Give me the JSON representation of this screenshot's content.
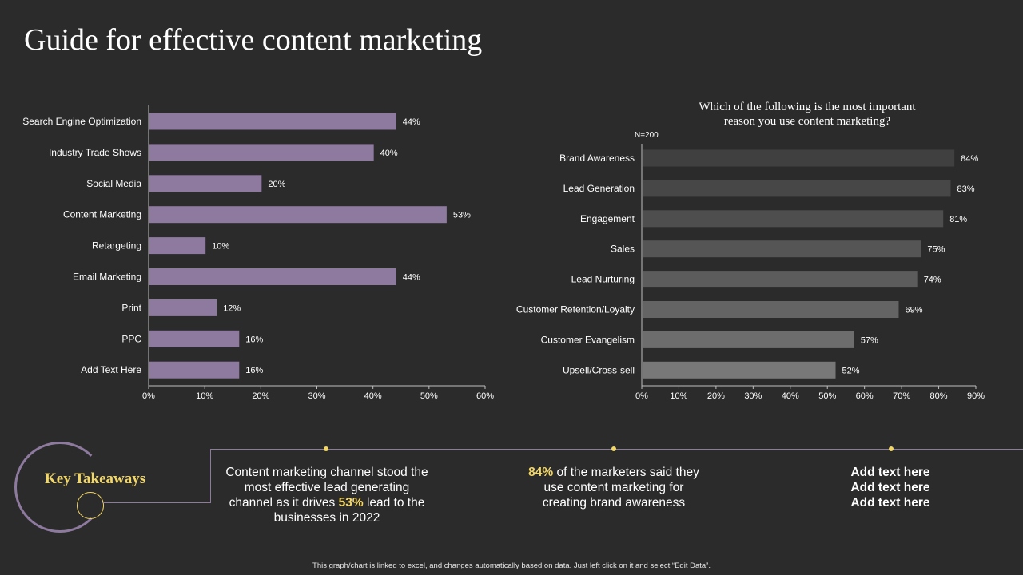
{
  "title": "Guide for effective content marketing",
  "colors": {
    "background": "#2b2b2b",
    "left_bar": "#8e7a9f",
    "right_bars": [
      "#404040",
      "#474747",
      "#4e4e4e",
      "#555555",
      "#5c5c5c",
      "#646464",
      "#6d6d6d",
      "#787878"
    ],
    "accent": "#f2d666",
    "text": "#ffffff"
  },
  "chart_data": [
    {
      "type": "bar",
      "orientation": "horizontal",
      "title": "",
      "categories": [
        "Search Engine Optimization",
        "Industry Trade Shows",
        "Social Media",
        "Content Marketing",
        "Retargeting",
        "Email Marketing",
        "Print",
        "PPC",
        "Add Text Here"
      ],
      "values": [
        44,
        40,
        20,
        53,
        10,
        44,
        12,
        16,
        16
      ],
      "value_labels": [
        "44%",
        "40%",
        "20%",
        "53%",
        "10%",
        "44%",
        "12%",
        "16%",
        "16%"
      ],
      "xticks": [
        "0%",
        "10%",
        "20%",
        "30%",
        "40%",
        "50%",
        "60%"
      ],
      "xlim": [
        0,
        60
      ],
      "grid": false
    },
    {
      "type": "bar",
      "orientation": "horizontal",
      "title": [
        "Which of the following is the most important",
        "reason you use content marketing?"
      ],
      "note": "N=200",
      "categories": [
        "Brand Awareness",
        "Lead Generation",
        "Engagement",
        "Sales",
        "Lead Nurturing",
        "Customer Retention/Loyalty",
        "Customer Evangelism",
        "Upsell/Cross-sell"
      ],
      "values": [
        84,
        83,
        81,
        75,
        74,
        69,
        57,
        52
      ],
      "value_labels": [
        "84%",
        "83%",
        "81%",
        "75%",
        "74%",
        "69%",
        "57%",
        "52%"
      ],
      "xticks": [
        "0%",
        "10%",
        "20%",
        "30%",
        "40%",
        "50%",
        "60%",
        "70%",
        "80%",
        "90%"
      ],
      "xlim": [
        0,
        90
      ],
      "grid": false
    }
  ],
  "takeaways": {
    "heading": "Key Takeaways",
    "item1": {
      "line1": "Content marketing channel stood the",
      "line2": "most effective lead generating",
      "line3_pre": "channel as it drives ",
      "line3_hl": "53%",
      "line3_post": " lead to the",
      "line4": "businesses in 2022"
    },
    "item2": {
      "hl": "84%",
      "line1_post": " of the marketers said they",
      "line2": "use content marketing for",
      "line3": "creating brand awareness"
    },
    "item3": [
      "Add text here",
      "Add text here",
      "Add text here"
    ]
  },
  "footnote": "This graph/chart is linked to excel, and changes automatically based on data. Just left click on it and select “Edit Data”."
}
